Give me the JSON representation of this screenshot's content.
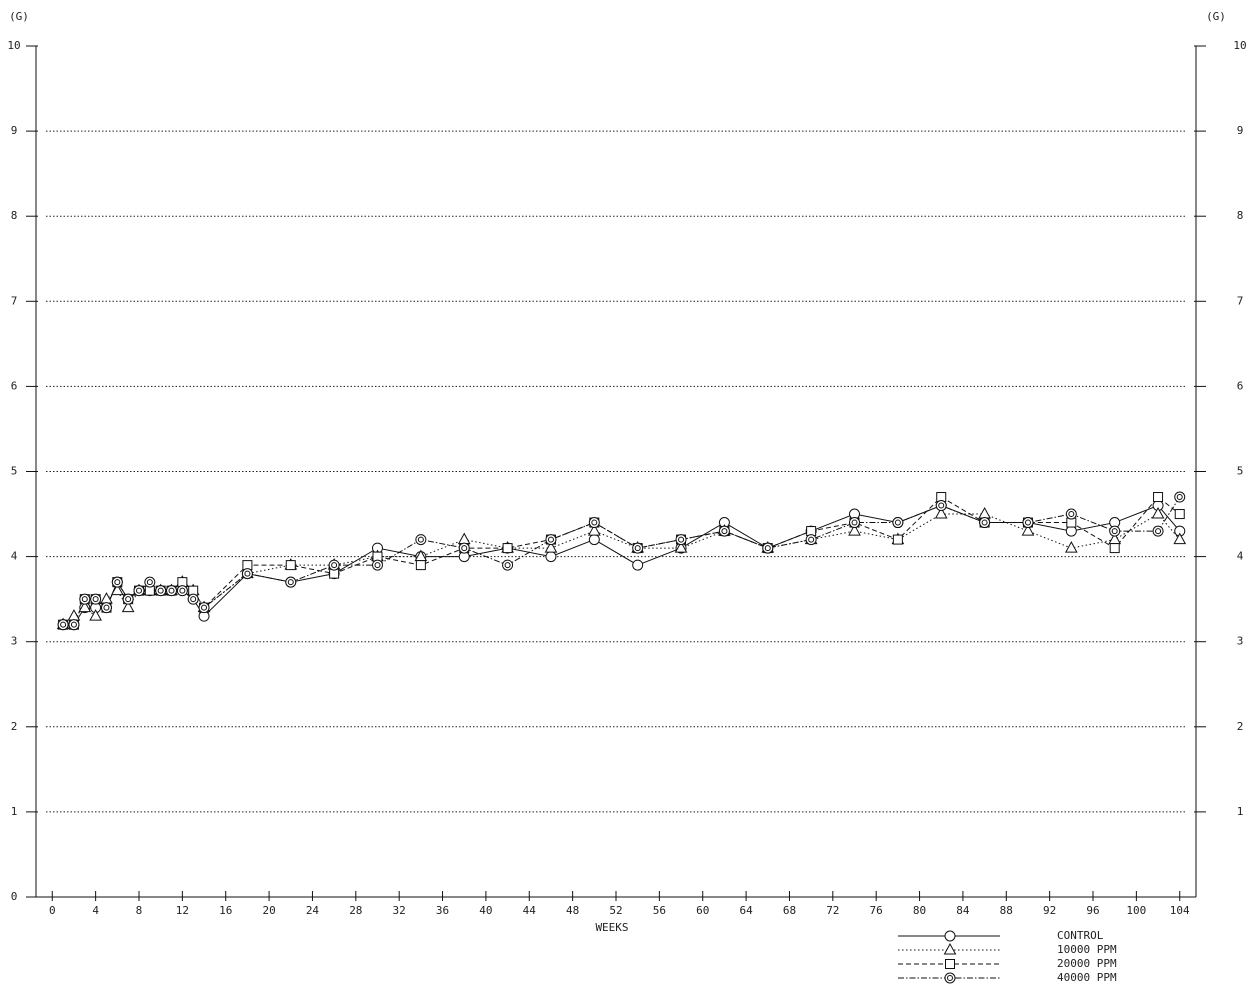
{
  "chart_data": {
    "type": "line",
    "ylabel": "(G)",
    "y2label": "(G)",
    "xlabel": "WEEKS",
    "x": [
      1,
      2,
      3,
      4,
      5,
      6,
      7,
      8,
      9,
      10,
      11,
      12,
      13,
      14,
      18,
      22,
      26,
      30,
      34,
      38,
      42,
      46,
      50,
      54,
      58,
      62,
      66,
      70,
      74,
      78,
      82,
      86,
      90,
      94,
      98,
      102,
      104
    ],
    "series": [
      {
        "name": "CONTROL",
        "color": "#111",
        "dash": "solid",
        "marker": "circle",
        "values": [
          3.2,
          3.2,
          3.4,
          3.4,
          3.4,
          3.7,
          3.5,
          3.6,
          3.6,
          3.6,
          3.6,
          3.6,
          3.5,
          3.3,
          3.8,
          3.7,
          3.8,
          4.1,
          4.0,
          4.0,
          4.1,
          4.0,
          4.2,
          3.9,
          4.1,
          4.4,
          4.1,
          4.3,
          4.5,
          4.4,
          4.6,
          4.4,
          4.4,
          4.3,
          4.4,
          4.6,
          4.3
        ]
      },
      {
        "name": "10000 PPM",
        "color": "#111",
        "dash": "dotted",
        "marker": "triangle",
        "values": [
          3.2,
          3.3,
          3.4,
          3.3,
          3.5,
          3.6,
          3.4,
          3.6,
          3.6,
          3.6,
          3.6,
          3.7,
          3.6,
          3.4,
          3.8,
          3.9,
          3.9,
          4.0,
          4.0,
          4.2,
          4.1,
          4.1,
          4.3,
          4.1,
          4.1,
          4.3,
          4.1,
          4.2,
          4.3,
          4.2,
          4.5,
          4.5,
          4.3,
          4.1,
          4.2,
          4.5,
          4.2
        ]
      },
      {
        "name": "20000 PPM",
        "color": "#111",
        "dash": "dashed",
        "marker": "square",
        "values": [
          3.2,
          3.2,
          3.5,
          3.5,
          3.4,
          3.7,
          3.5,
          3.6,
          3.6,
          3.6,
          3.6,
          3.7,
          3.6,
          3.4,
          3.9,
          3.9,
          3.8,
          4.0,
          3.9,
          4.1,
          4.1,
          4.2,
          4.4,
          4.1,
          4.2,
          4.3,
          4.1,
          4.3,
          4.4,
          4.2,
          4.7,
          4.4,
          4.4,
          4.4,
          4.1,
          4.7,
          4.5
        ]
      },
      {
        "name": "40000 PPM",
        "color": "#111",
        "dash": "dashdot",
        "marker": "double-circle",
        "values": [
          3.2,
          3.2,
          3.5,
          3.5,
          3.4,
          3.7,
          3.5,
          3.6,
          3.7,
          3.6,
          3.6,
          3.6,
          3.5,
          3.4,
          3.8,
          3.7,
          3.9,
          3.9,
          4.2,
          4.1,
          3.9,
          4.2,
          4.4,
          4.1,
          4.2,
          4.3,
          4.1,
          4.2,
          4.4,
          4.4,
          4.6,
          4.4,
          4.4,
          4.5,
          4.3,
          4.3,
          4.7
        ]
      }
    ],
    "xlim": [
      -1.5,
      105.5
    ],
    "xticks": [
      0,
      4,
      8,
      12,
      16,
      20,
      24,
      28,
      32,
      36,
      40,
      44,
      48,
      52,
      56,
      60,
      64,
      68,
      72,
      76,
      80,
      84,
      88,
      92,
      96,
      100,
      104
    ],
    "ylim": [
      0,
      10
    ],
    "yticks": [
      0,
      1,
      2,
      3,
      4,
      5,
      6,
      7,
      8,
      9,
      10
    ],
    "y2lim": [
      0,
      10
    ],
    "y2ticks": [
      1,
      2,
      3,
      4,
      5,
      6,
      7,
      8,
      9,
      10
    ],
    "grid": true,
    "legend": "lower right"
  }
}
